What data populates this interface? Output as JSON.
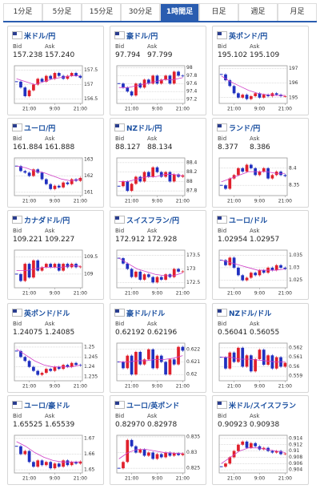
{
  "tabs": {
    "items": [
      "1分足",
      "5分足",
      "15分足",
      "30分足",
      "1時間足",
      "日足",
      "週足",
      "月足"
    ],
    "active": 4
  },
  "labels": {
    "bid": "Bid",
    "ask": "Ask"
  },
  "up_color": "#e0202c",
  "down_color": "#2030c0",
  "ma_color": "#d040c8",
  "cards": [
    {
      "name": "米ドル/円",
      "bid": "157.238",
      "ask": "157.240",
      "chart": {
        "ylim": [
          156.35,
          157.65
        ],
        "yticks": [
          157.5,
          157,
          156.5
        ],
        "xlabels": [
          {
            "value": 3,
            "label": "21:00"
          },
          {
            "value": 9,
            "label": "9:00"
          },
          {
            "value": 15,
            "label": "21:00"
          }
        ],
        "values": [
          157.1,
          156.9,
          156.6,
          156.8,
          157.0,
          157.2,
          157.1,
          157.3,
          157.2,
          157.4,
          157.3,
          157.2,
          157.3,
          157.4,
          157.3,
          157.24
        ],
        "ma": [
          157.2,
          157.1,
          157.0,
          157.1,
          157.2,
          157.25,
          157.3,
          157.3
        ]
      }
    },
    {
      "name": "豪ドル/円",
      "bid": "97.794",
      "ask": "97.799",
      "chart": {
        "ylim": [
          97.1,
          98.05
        ],
        "yticks": [
          98,
          97.8,
          97.6,
          97.4,
          97.2
        ],
        "xlabels": [
          {
            "value": 3,
            "label": "21:00"
          },
          {
            "value": 9,
            "label": "9:00"
          },
          {
            "value": 15,
            "label": "21:00"
          }
        ],
        "values": [
          97.6,
          97.5,
          97.4,
          97.3,
          97.6,
          97.5,
          97.7,
          97.6,
          97.8,
          97.6,
          97.7,
          97.8,
          97.6,
          97.9,
          97.8,
          97.79
        ],
        "ma": [
          97.5,
          97.5,
          97.55,
          97.6,
          97.65,
          97.7,
          97.7,
          97.75
        ]
      }
    },
    {
      "name": "英ポンド/円",
      "bid": "195.102",
      "ask": "195.109",
      "chart": {
        "ylim": [
          194.6,
          197.2
        ],
        "yticks": [
          197,
          196,
          195
        ],
        "xlabels": [
          {
            "value": 3,
            "label": "21:00"
          },
          {
            "value": 9,
            "label": "9:00"
          },
          {
            "value": 15,
            "label": "21:00"
          }
        ],
        "values": [
          196.6,
          196.2,
          195.8,
          195.3,
          195.0,
          195.2,
          194.9,
          195.1,
          195.3,
          195.0,
          195.2,
          195.1,
          195.3,
          195.2,
          195.1,
          195.1
        ],
        "ma": [
          196.5,
          196.1,
          195.8,
          195.5,
          195.3,
          195.2,
          195.15,
          195.15
        ]
      }
    },
    {
      "name": "ユーロ/円",
      "bid": "161.884",
      "ask": "161.888",
      "chart": {
        "ylim": [
          160.8,
          163.1
        ],
        "yticks": [
          163,
          162,
          161
        ],
        "xlabels": [
          {
            "value": 3,
            "label": "21:00"
          },
          {
            "value": 9,
            "label": "9:00"
          },
          {
            "value": 15,
            "label": "21:00"
          }
        ],
        "values": [
          162.6,
          162.3,
          162.2,
          162.0,
          162.4,
          162.2,
          161.8,
          161.5,
          161.2,
          161.4,
          161.3,
          161.6,
          161.5,
          161.8,
          161.7,
          161.88
        ],
        "ma": [
          162.6,
          162.5,
          162.3,
          162.2,
          162.0,
          161.8,
          161.7,
          161.8
        ]
      }
    },
    {
      "name": "NZドル/円",
      "bid": "88.127",
      "ask": "88.134",
      "chart": {
        "ylim": [
          87.7,
          88.5
        ],
        "yticks": [
          88.4,
          88.2,
          88,
          87.8
        ],
        "xlabels": [
          {
            "value": 3,
            "label": "21:00"
          },
          {
            "value": 9,
            "label": "9:00"
          },
          {
            "value": 15,
            "label": "21:00"
          }
        ],
        "values": [
          87.9,
          88.0,
          87.8,
          87.95,
          88.1,
          88.0,
          88.2,
          88.1,
          88.3,
          88.2,
          88.1,
          88.2,
          88.0,
          88.15,
          88.1,
          88.13
        ],
        "ma": [
          88.0,
          88.0,
          88.05,
          88.1,
          88.1,
          88.15,
          88.15,
          88.12
        ]
      }
    },
    {
      "name": "ランド/円",
      "bid": "8.377",
      "ask": "8.386",
      "chart": {
        "ylim": [
          8.32,
          8.43
        ],
        "yticks": [
          8.4,
          8.35
        ],
        "xlabels": [
          {
            "value": 3,
            "label": "21:00"
          },
          {
            "value": 9,
            "label": "9:00"
          },
          {
            "value": 15,
            "label": "21:00"
          }
        ],
        "values": [
          8.35,
          8.34,
          8.37,
          8.38,
          8.4,
          8.39,
          8.41,
          8.4,
          8.38,
          8.39,
          8.4,
          8.37,
          8.38,
          8.39,
          8.38,
          8.377
        ],
        "ma": [
          8.36,
          8.37,
          8.38,
          8.39,
          8.39,
          8.39,
          8.385,
          8.385
        ]
      }
    },
    {
      "name": "カナダドル/円",
      "bid": "109.221",
      "ask": "109.227",
      "chart": {
        "ylim": [
          108.6,
          109.7
        ],
        "yticks": [
          109.5,
          109
        ],
        "xlabels": [
          {
            "value": 3,
            "label": "21:00"
          },
          {
            "value": 9,
            "label": "9:00"
          },
          {
            "value": 15,
            "label": "21:00"
          }
        ],
        "values": [
          109.0,
          108.8,
          109.3,
          108.9,
          109.4,
          109.1,
          109.2,
          109.3,
          109.2,
          109.3,
          109.1,
          109.3,
          109.2,
          109.3,
          109.2,
          109.22
        ],
        "ma": [
          109.1,
          109.1,
          109.15,
          109.2,
          109.2,
          109.2,
          109.25,
          109.23
        ]
      }
    },
    {
      "name": "スイスフラン/円",
      "bid": "172.912",
      "ask": "172.928",
      "chart": {
        "ylim": [
          172.3,
          173.7
        ],
        "yticks": [
          173.5,
          173,
          172.5
        ],
        "xlabels": [
          {
            "value": 3,
            "label": "21:00"
          },
          {
            "value": 9,
            "label": "9:00"
          },
          {
            "value": 15,
            "label": "21:00"
          }
        ],
        "values": [
          173.4,
          173.2,
          173.0,
          172.7,
          172.9,
          172.6,
          172.8,
          172.7,
          172.5,
          172.7,
          172.6,
          172.8,
          172.7,
          173.0,
          172.9,
          172.91
        ],
        "ma": [
          173.4,
          173.2,
          173.0,
          172.9,
          172.8,
          172.75,
          172.75,
          172.85
        ]
      }
    },
    {
      "name": "ユーロ/ドル",
      "bid": "1.02954",
      "ask": "1.02957",
      "chart": {
        "ylim": [
          1.022,
          1.037
        ],
        "yticks": [
          1.035,
          1.03,
          1.025
        ],
        "xlabels": [
          {
            "value": 3,
            "label": "21:00"
          },
          {
            "value": 9,
            "label": "9:00"
          },
          {
            "value": 15,
            "label": "21:00"
          }
        ],
        "values": [
          1.033,
          1.031,
          1.034,
          1.03,
          1.027,
          1.025,
          1.026,
          1.028,
          1.027,
          1.029,
          1.028,
          1.03,
          1.029,
          1.031,
          1.03,
          1.0295
        ],
        "ma": [
          1.033,
          1.032,
          1.031,
          1.03,
          1.029,
          1.029,
          1.029,
          1.0295
        ]
      }
    },
    {
      "name": "英ポンド/ドル",
      "bid": "1.24075",
      "ask": "1.24085",
      "chart": {
        "ylim": [
          1.233,
          1.252
        ],
        "yticks": [
          1.25,
          1.245,
          1.24,
          1.235
        ],
        "xlabels": [
          {
            "value": 3,
            "label": "21:00"
          },
          {
            "value": 9,
            "label": "9:00"
          },
          {
            "value": 15,
            "label": "21:00"
          }
        ],
        "values": [
          1.248,
          1.245,
          1.243,
          1.24,
          1.238,
          1.236,
          1.237,
          1.239,
          1.238,
          1.24,
          1.239,
          1.241,
          1.24,
          1.242,
          1.241,
          1.2408
        ],
        "ma": [
          1.249,
          1.246,
          1.243,
          1.241,
          1.24,
          1.24,
          1.24,
          1.241
        ]
      }
    },
    {
      "name": "豪ドル/ドル",
      "bid": "0.62192",
      "ask": "0.62196",
      "chart": {
        "ylim": [
          0.6195,
          0.6225
        ],
        "yticks": [
          0.622,
          0.621,
          0.62
        ],
        "xlabels": [
          {
            "value": 3,
            "label": "21:00"
          },
          {
            "value": 9,
            "label": "9:00"
          },
          {
            "value": 15,
            "label": "21:00"
          }
        ],
        "values": [
          0.621,
          0.6205,
          0.6215,
          0.62,
          0.6218,
          0.6208,
          0.6212,
          0.622,
          0.6205,
          0.6215,
          0.621,
          0.62,
          0.6212,
          0.6208,
          0.6222,
          0.6219
        ],
        "ma": [
          0.621,
          0.621,
          0.6211,
          0.6211,
          0.6212,
          0.6212,
          0.6213,
          0.6215
        ]
      }
    },
    {
      "name": "NZドル/ドル",
      "bid": "0.56041",
      "ask": "0.56055",
      "chart": {
        "ylim": [
          0.5585,
          0.5625
        ],
        "yticks": [
          0.562,
          0.561,
          0.56,
          0.559
        ],
        "xlabels": [
          {
            "value": 3,
            "label": "21:00"
          },
          {
            "value": 9,
            "label": "9:00"
          },
          {
            "value": 15,
            "label": "21:00"
          }
        ],
        "values": [
          0.561,
          0.5598,
          0.5615,
          0.5605,
          0.562,
          0.56,
          0.5612,
          0.5595,
          0.5608,
          0.5618,
          0.5602,
          0.5612,
          0.5598,
          0.561,
          0.56,
          0.5604
        ],
        "ma": [
          0.561,
          0.561,
          0.5608,
          0.5608,
          0.5607,
          0.5606,
          0.5605,
          0.5605
        ]
      }
    },
    {
      "name": "ユーロ/豪ドル",
      "bid": "1.65525",
      "ask": "1.65539",
      "chart": {
        "ylim": [
          1.648,
          1.672
        ],
        "yticks": [
          1.67,
          1.66,
          1.65
        ],
        "xlabels": [
          {
            "value": 3,
            "label": "21:00"
          },
          {
            "value": 9,
            "label": "9:00"
          },
          {
            "value": 15,
            "label": "21:00"
          }
        ],
        "values": [
          1.665,
          1.66,
          1.662,
          1.655,
          1.652,
          1.656,
          1.653,
          1.655,
          1.651,
          1.654,
          1.652,
          1.656,
          1.653,
          1.655,
          1.654,
          1.6553
        ],
        "ma": [
          1.668,
          1.665,
          1.661,
          1.658,
          1.656,
          1.655,
          1.655,
          1.655
        ]
      }
    },
    {
      "name": "ユーロ/英ポンド",
      "bid": "0.82970",
      "ask": "0.82978",
      "chart": {
        "ylim": [
          0.8235,
          0.8355
        ],
        "yticks": [
          0.835,
          0.83,
          0.825
        ],
        "xlabels": [
          {
            "value": 3,
            "label": "21:00"
          },
          {
            "value": 9,
            "label": "9:00"
          },
          {
            "value": 15,
            "label": "21:00"
          }
        ],
        "values": [
          0.825,
          0.827,
          0.834,
          0.832,
          0.83,
          0.831,
          0.829,
          0.83,
          0.828,
          0.8295,
          0.8285,
          0.83,
          0.829,
          0.8298,
          0.8292,
          0.8297
        ],
        "ma": [
          0.828,
          0.83,
          0.831,
          0.831,
          0.8305,
          0.83,
          0.8298,
          0.8297
        ]
      }
    },
    {
      "name": "米ドル/スイスフラン",
      "bid": "0.90923",
      "ask": "0.90938",
      "chart": {
        "ylim": [
          0.903,
          0.915
        ],
        "yticks": [
          0.914,
          0.912,
          0.91,
          0.908,
          0.906,
          0.904
        ],
        "xlabels": [
          {
            "value": 3,
            "label": "21:00"
          },
          {
            "value": 9,
            "label": "9:00"
          },
          {
            "value": 15,
            "label": "21:00"
          }
        ],
        "values": [
          0.905,
          0.906,
          0.908,
          0.91,
          0.912,
          0.913,
          0.911,
          0.9125,
          0.9115,
          0.9105,
          0.911,
          0.91,
          0.9095,
          0.91,
          0.909,
          0.9092
        ],
        "ma": [
          0.906,
          0.908,
          0.91,
          0.911,
          0.911,
          0.9105,
          0.91,
          0.9095
        ]
      }
    }
  ]
}
